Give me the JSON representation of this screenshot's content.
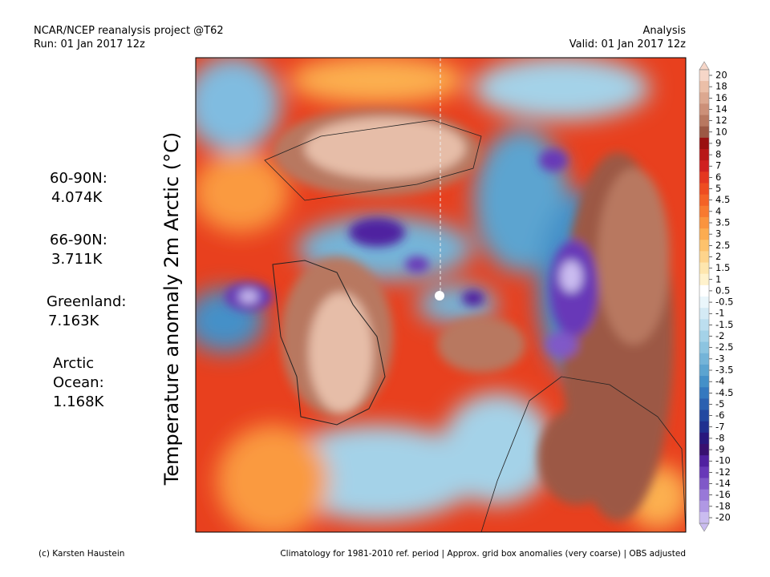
{
  "header": {
    "left": [
      "NCAR/NCEP reanalysis project @T62",
      "Run: 01 Jan 2017 12z"
    ],
    "right": [
      "Analysis",
      "Valid: 01 Jan 2017 12z"
    ]
  },
  "stats": [
    {
      "label": [
        "60-90N:"
      ],
      "value": "4.074K"
    },
    {
      "label": [
        "66-90N:"
      ],
      "value": "3.711K"
    },
    {
      "label": [
        "Greenland:"
      ],
      "value": "7.163K"
    },
    {
      "label": [
        "Arctic",
        "Ocean:"
      ],
      "value": "1.168K"
    }
  ],
  "axis_label": "Temperature anomaly 2m Arctic (°C)",
  "colorbar": {
    "labels": [
      "20",
      "18",
      "16",
      "14",
      "12",
      "10",
      "9",
      "8",
      "7",
      "6",
      "5",
      "4.5",
      "4",
      "3.5",
      "3",
      "2.5",
      "2",
      "1.5",
      "1",
      "0.5",
      "-0.5",
      "-1",
      "-1.5",
      "-2",
      "-2.5",
      "-3",
      "-3.5",
      "-4",
      "-4.5",
      "-5",
      "-6",
      "-7",
      "-8",
      "-9",
      "-10",
      "-12",
      "-14",
      "-16",
      "-18",
      "-20"
    ],
    "colors": [
      "#f6d6c8",
      "#ebbfa8",
      "#dca890",
      "#cc9078",
      "#b87860",
      "#9c5844",
      "#9a1010",
      "#b81818",
      "#d02020",
      "#e43620",
      "#ee4c20",
      "#f46226",
      "#f87a30",
      "#fa943e",
      "#fcac50",
      "#fdc26c",
      "#fed48c",
      "#fee6ae",
      "#fff2cc",
      "#ffffff",
      "#eaf6fb",
      "#d4eaf5",
      "#bcdeef",
      "#a4d2e8",
      "#8cc4e0",
      "#74b4d8",
      "#5ca4d0",
      "#4490c8",
      "#3478bf",
      "#2a60b0",
      "#2248a0",
      "#203090",
      "#28187e",
      "#381070",
      "#5020a0",
      "#6838b8",
      "#8058c8",
      "#9878d8",
      "#b098e4",
      "#cabcf0"
    ]
  },
  "footer": {
    "left": "(c) Karsten Haustein",
    "right": "Climatology for 1981-2010 ref. period | Approx. grid box anomalies (very coarse) | OBS adjusted"
  }
}
